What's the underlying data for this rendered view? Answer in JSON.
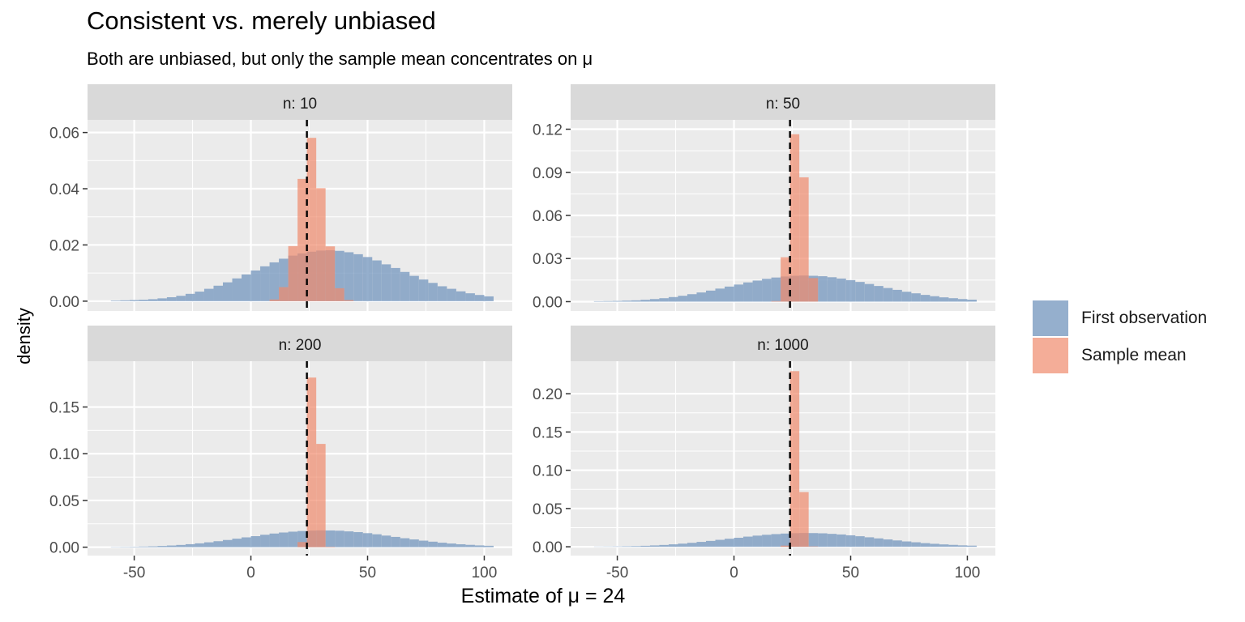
{
  "header": {
    "title": "Consistent vs. merely unbiased",
    "subtitle": "Both are unbiased, but only the sample mean concentrates on μ"
  },
  "colors": {
    "first_observation": "#7a9bc0",
    "sample_mean": "#f08a6c",
    "panel_bg": "#ebebeb",
    "strip_bg": "#d9d9d9",
    "grid": "#ffffff",
    "vline": "#000000"
  },
  "chart_data": {
    "type": "histogram",
    "title": "Consistent vs. merely unbiased",
    "subtitle": "Both are unbiased, but only the sample mean concentrates on μ",
    "xlabel": "Estimate of μ = 24",
    "ylabel": "density",
    "xlim": [
      -70,
      112
    ],
    "x_ticks": [
      -50,
      0,
      50,
      100
    ],
    "x_tick_labels": [
      "-50",
      "0",
      "50",
      "100"
    ],
    "true_value": 24,
    "bin_width": 4,
    "series_names": [
      "First observation",
      "Sample mean"
    ],
    "legend": [
      {
        "name": "First observation",
        "color": "#7a9bc0"
      },
      {
        "name": "Sample mean",
        "color": "#f08a6c"
      }
    ],
    "legend_position": "right",
    "panels": [
      {
        "strip": "n: 10",
        "ylim": [
          -0.0035,
          0.0645
        ],
        "y_ticks": [
          0,
          0.02,
          0.04,
          0.06
        ],
        "y_tick_labels": [
          "0.00",
          "0.02",
          "0.04",
          "0.06"
        ],
        "first_observation": {
          "start": -60,
          "values": [
            0.0002,
            0.0003,
            0.0004,
            0.0005,
            0.0007,
            0.001,
            0.0014,
            0.0019,
            0.0026,
            0.0034,
            0.0044,
            0.0055,
            0.0067,
            0.0081,
            0.0095,
            0.0109,
            0.0124,
            0.0138,
            0.0151,
            0.0162,
            0.017,
            0.0176,
            0.018,
            0.0181,
            0.0179,
            0.0174,
            0.0167,
            0.0157,
            0.0145,
            0.0131,
            0.0118,
            0.0104,
            0.009,
            0.0077,
            0.0065,
            0.0053,
            0.0044,
            0.0035,
            0.0028,
            0.0022,
            0.0017
          ]
        },
        "sample_mean": {
          "start": 8,
          "values": [
            0.0006,
            0.005,
            0.0196,
            0.0435,
            0.0581,
            0.0402,
            0.0195,
            0.0046,
            0.0004
          ]
        }
      },
      {
        "strip": "n: 50",
        "ylim": [
          -0.0065,
          0.1265
        ],
        "y_ticks": [
          0,
          0.03,
          0.06,
          0.09,
          0.12
        ],
        "y_tick_labels": [
          "0.00",
          "0.03",
          "0.06",
          "0.09",
          "0.12"
        ],
        "first_observation": {
          "start": -60,
          "values": [
            0.0003,
            0.0004,
            0.0005,
            0.0007,
            0.0009,
            0.0013,
            0.0018,
            0.0024,
            0.0032,
            0.0041,
            0.0052,
            0.0064,
            0.0077,
            0.0091,
            0.0105,
            0.0119,
            0.0134,
            0.0147,
            0.0159,
            0.0168,
            0.0175,
            0.018,
            0.0182,
            0.018,
            0.0177,
            0.017,
            0.0161,
            0.015,
            0.0137,
            0.0123,
            0.0109,
            0.0095,
            0.0082,
            0.0069,
            0.0058,
            0.0047,
            0.0038,
            0.003,
            0.0024,
            0.0018,
            0.0014
          ]
        },
        "sample_mean": {
          "start": 16,
          "values": [
            0.0004,
            0.0309,
            0.1165,
            0.0865,
            0.0164
          ]
        }
      },
      {
        "strip": "n: 200",
        "ylim": [
          -0.009,
          0.199
        ],
        "y_ticks": [
          0,
          0.05,
          0.1,
          0.15
        ],
        "y_tick_labels": [
          "0.00",
          "0.05",
          "0.10",
          "0.15"
        ],
        "first_observation": {
          "start": -60,
          "values": [
            0.0003,
            0.0004,
            0.0005,
            0.0007,
            0.0009,
            0.0013,
            0.0018,
            0.0024,
            0.0032,
            0.0041,
            0.0052,
            0.0064,
            0.0077,
            0.0091,
            0.0105,
            0.0118,
            0.0133,
            0.0146,
            0.0157,
            0.0166,
            0.0173,
            0.0178,
            0.018,
            0.0179,
            0.0176,
            0.0169,
            0.0161,
            0.015,
            0.0138,
            0.0124,
            0.011,
            0.0096,
            0.0083,
            0.007,
            0.0059,
            0.0048,
            0.0039,
            0.0031,
            0.0025,
            0.0019,
            0.0015
          ]
        },
        "sample_mean": {
          "start": 20,
          "values": [
            0.0055,
            0.1815,
            0.1105,
            0.0005
          ]
        }
      },
      {
        "strip": "n: 1000",
        "ylim": [
          -0.0115,
          0.2425
        ],
        "y_ticks": [
          0,
          0.05,
          0.1,
          0.15,
          0.2
        ],
        "y_tick_labels": [
          "0.00",
          "0.05",
          "0.10",
          "0.15",
          "0.20"
        ],
        "first_observation": {
          "start": -60,
          "values": [
            0.0003,
            0.0004,
            0.0005,
            0.0007,
            0.0009,
            0.0013,
            0.0018,
            0.0024,
            0.0032,
            0.0041,
            0.0052,
            0.0064,
            0.0077,
            0.0091,
            0.0105,
            0.0118,
            0.0133,
            0.0146,
            0.0157,
            0.0166,
            0.0173,
            0.0178,
            0.018,
            0.0179,
            0.0176,
            0.0169,
            0.0161,
            0.015,
            0.0138,
            0.0124,
            0.011,
            0.0096,
            0.0083,
            0.007,
            0.0059,
            0.0048,
            0.0039,
            0.0031,
            0.0025,
            0.0019,
            0.0015
          ]
        },
        "sample_mean": {
          "start": 20,
          "values": [
            0.0015,
            0.2295,
            0.0715,
            0.0005
          ]
        }
      }
    ]
  }
}
